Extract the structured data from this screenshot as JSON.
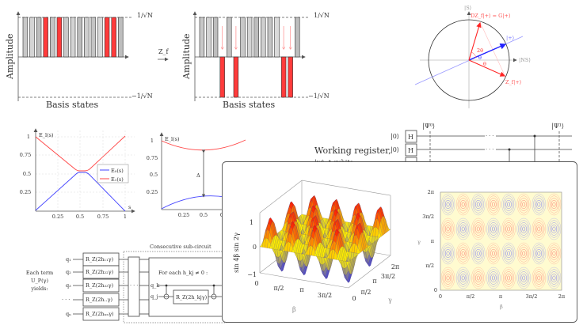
{
  "amplitude_panels": {
    "ylabel": "Amplitude",
    "xlabel": "Basis states",
    "top_label": "1/√N",
    "bottom_label": "−1/√N",
    "operator_label": "Z_f",
    "bar_count": 15,
    "marked_indices": [
      3,
      5,
      12,
      13
    ],
    "colors": {
      "unmarked": "#c8c8c8",
      "marked": "#ff3b3b"
    }
  },
  "grover_circle": {
    "s_axis_label": "|S⟩",
    "ns_axis_label": "|NS⟩",
    "plus_label": "|+⟩",
    "grover_label": "DZ_f|+⟩ = G|+⟩",
    "zf_label": "Z_f|+⟩",
    "theta_label": "θ",
    "two_theta_label": "2θ"
  },
  "energy_plot": {
    "ylabel": "E_l(s)",
    "xlabel": "s",
    "yticks": [
      "1",
      "0.75",
      "0.5",
      "0.25"
    ],
    "xticks": [
      "0.25",
      "0.5",
      "0.75",
      "1"
    ],
    "legend": [
      "E₀(s)",
      "E₁(s)"
    ],
    "colors": {
      "E0": "#4444ff",
      "E1": "#ff4444"
    }
  },
  "gap_plot": {
    "ylabel": "E_l(s)",
    "yticks": [
      "1",
      "0.75",
      "0.5",
      "0.25"
    ],
    "xticks": [
      "0.25",
      "0.5",
      "0"
    ],
    "gap_label": "Δ"
  },
  "qpe_circuit": {
    "ket0": "|0⟩",
    "h_label": "H",
    "psi0": "|Ψ⁰⟩",
    "psi1": "|Ψ¹⟩",
    "dots": "· · ·",
    "register_line1": "Working register,",
    "register_line2": "|w⟩, t qubits"
  },
  "qaoa_circuit": {
    "intro": [
      "Each term",
      "U_P(γ)",
      "yields:"
    ],
    "qubits": [
      "q₁",
      "q₂",
      "q₃",
      "· · ·",
      "qₙ"
    ],
    "gates": [
      "R_Z(2h₁₁γ)",
      "R_Z(2h₂₂γ)",
      "R_Z(2h₃₃γ)",
      "R_Z(2h..γ)",
      "R_Z(2hₙₙγ)"
    ],
    "subcircuit_title": "Consecutive sub-circuit",
    "dots": "· · ·",
    "for_each": "For each h_kj ≠ 0 :",
    "qk": "q_k",
    "qj": "q_j",
    "rz_kj": "R_Z(2h_kjγ)"
  },
  "overlay": {
    "surface": {
      "zlabel": "sin 4β sin 2γ",
      "xlabel": "β",
      "ylabel": "γ",
      "zticks": [
        "1",
        "0",
        "−1"
      ],
      "xticks": [
        "0",
        "π/2",
        "π",
        "3π/2"
      ],
      "yticks": [
        "0",
        "π/2",
        "π",
        "3π/2",
        "2π"
      ]
    },
    "contour": {
      "xlabel": "β",
      "ylabel": "γ",
      "xticks": [
        "0",
        "π/2",
        "π",
        "3π/2",
        "2π"
      ],
      "yticks": [
        "2π",
        "3π/2",
        "π",
        "π/2",
        "0"
      ],
      "colors": {
        "positive": "#ff5555",
        "negative": "#5555ff",
        "background": "#fffbd0"
      }
    }
  },
  "chart_data": {
    "type": "surface",
    "function": "sin 4β sin 2γ",
    "xlim": [
      0,
      6.2832
    ],
    "ylim": [
      0,
      6.2832
    ],
    "zlim": [
      -1,
      1
    ]
  }
}
